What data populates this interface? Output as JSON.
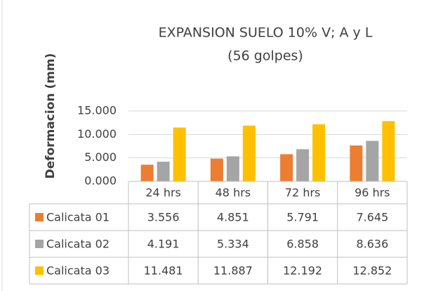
{
  "chart_data": {
    "type": "bar",
    "title": "EXPANSION SUELO 10% V; A y L",
    "subtitle": "(56 golpes)",
    "y_label": "Deformacion (mm)",
    "categories": [
      "24 hrs",
      "48 hrs",
      "72 hrs",
      "96 hrs"
    ],
    "series": [
      {
        "name": "Calicata 01",
        "color": "#ed7d31",
        "values": [
          3.556,
          4.851,
          5.791,
          7.645
        ]
      },
      {
        "name": "Calicata 02",
        "color": "#a5a5a5",
        "values": [
          4.191,
          5.334,
          6.858,
          8.636
        ]
      },
      {
        "name": "Calicata 03",
        "color": "#ffc000",
        "values": [
          11.481,
          11.887,
          12.192,
          12.852
        ]
      }
    ],
    "ylim": [
      0,
      15
    ],
    "yticks": [
      {
        "value": 0,
        "label": "0.000"
      },
      {
        "value": 5,
        "label": "5.000"
      },
      {
        "value": 10,
        "label": "10.000"
      },
      {
        "value": 15,
        "label": "15.000"
      }
    ],
    "grid": true,
    "data_table": true
  }
}
